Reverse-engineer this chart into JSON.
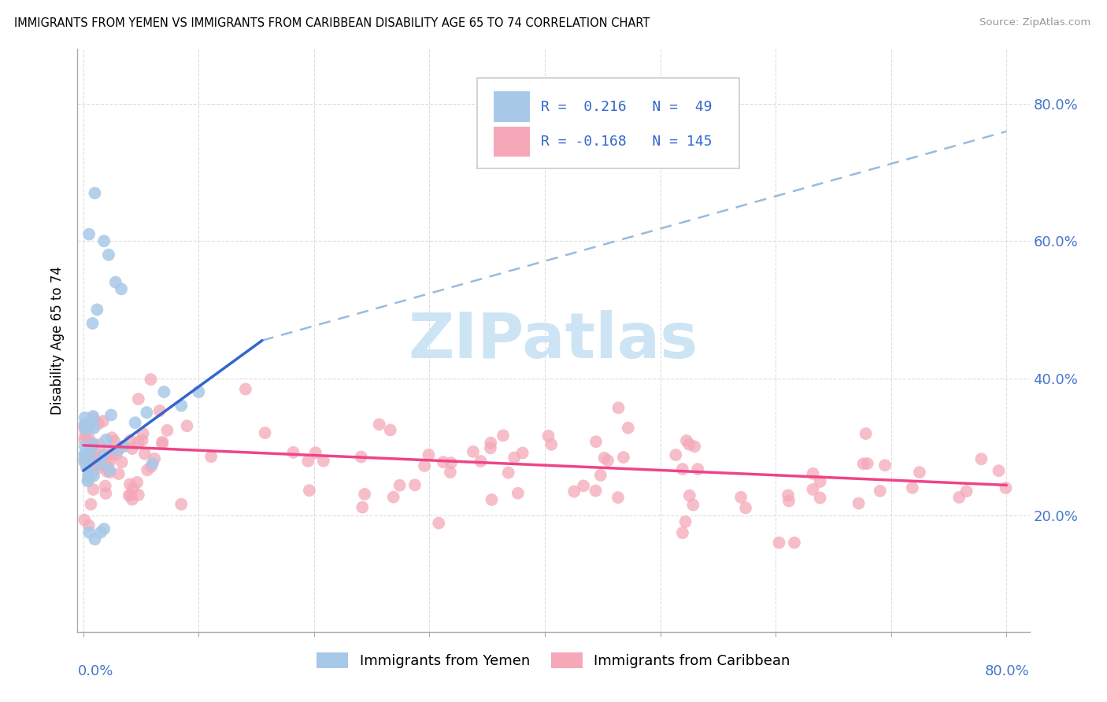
{
  "title": "IMMIGRANTS FROM YEMEN VS IMMIGRANTS FROM CARIBBEAN DISABILITY AGE 65 TO 74 CORRELATION CHART",
  "source": "Source: ZipAtlas.com",
  "ylabel": "Disability Age 65 to 74",
  "color_yemen": "#a8c8e8",
  "color_caribbean": "#f4a8b8",
  "color_line_yemen": "#3366CC",
  "color_line_carib": "#EE4488",
  "color_dashed": "#99bbdd",
  "legend_label1": "Immigrants from Yemen",
  "legend_label2": "Immigrants from Caribbean",
  "watermark_color": "#cde4f5",
  "grid_color": "#dddddd",
  "r1_text": "R =  0.216   N =  49",
  "r2_text": "R = -0.168   N = 145",
  "xlim": [
    -0.005,
    0.82
  ],
  "ylim": [
    0.03,
    0.88
  ],
  "y_tick_vals": [
    0.2,
    0.4,
    0.6,
    0.8
  ],
  "y_tick_labels": [
    "20.0%",
    "40.0%",
    "60.0%",
    "80.0%"
  ],
  "yemen_line_x": [
    0.0,
    0.155
  ],
  "yemen_line_y": [
    0.265,
    0.455
  ],
  "dashed_line_x": [
    0.155,
    0.8
  ],
  "dashed_line_y": [
    0.455,
    0.76
  ],
  "carib_line_x": [
    0.0,
    0.8
  ],
  "carib_line_y": [
    0.302,
    0.244
  ]
}
